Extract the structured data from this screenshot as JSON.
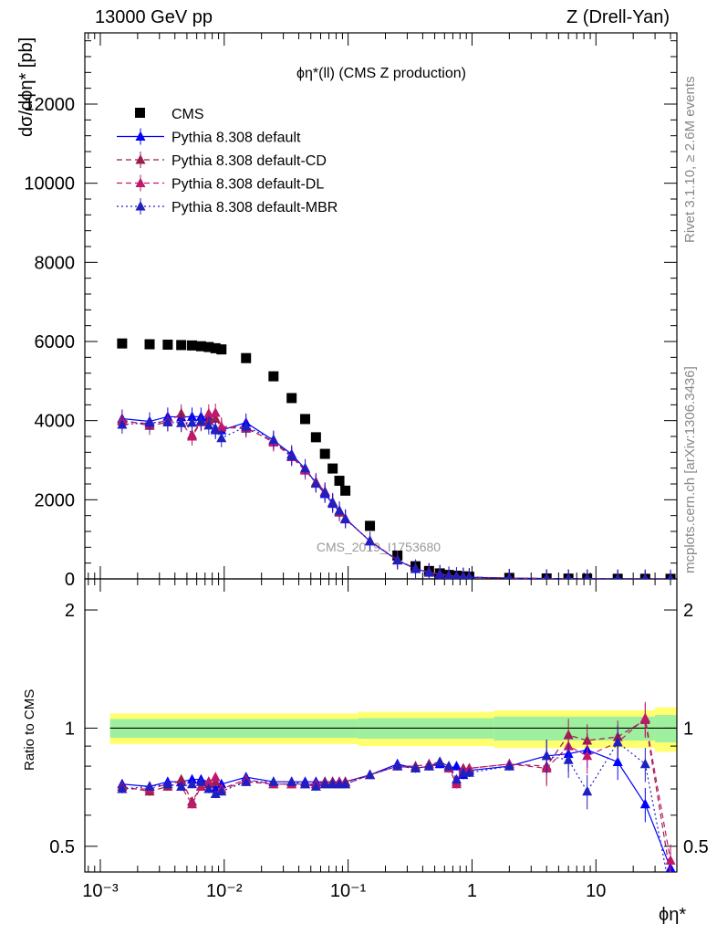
{
  "header": {
    "left": "13000 GeV pp",
    "right": "Z (Drell-Yan)"
  },
  "side_labels": {
    "rivet": "Rivet 3.1.10, ≥ 2.6M events",
    "mcplots": "mcplots.cern.ch [arXiv:1306.3436]"
  },
  "chart_data": [
    {
      "type": "scatter",
      "panel": "main",
      "title": "ϕη*(ll) (CMS Z production)",
      "ylabel": "dσ/dϕη* [pb]",
      "xlabel": "ϕη*",
      "xscale": "log",
      "xlim": [
        0.00075,
        45
      ],
      "ylim": [
        0,
        13800
      ],
      "yticks": [
        0,
        2000,
        4000,
        6000,
        8000,
        10000,
        12000
      ],
      "watermark": "CMS_2019_I1753680",
      "legend": [
        "CMS",
        "Pythia 8.308 default",
        "Pythia 8.308 default-CD",
        "Pythia 8.308 default-DL",
        "Pythia 8.308 default-MBR"
      ],
      "legend_position": "top-left",
      "x": [
        0.0015,
        0.0025,
        0.0035,
        0.0045,
        0.0055,
        0.0065,
        0.0075,
        0.0085,
        0.0095,
        0.015,
        0.025,
        0.035,
        0.045,
        0.055,
        0.065,
        0.075,
        0.085,
        0.095,
        0.15,
        0.25,
        0.35,
        0.45,
        0.55,
        0.65,
        0.75,
        0.85,
        0.95,
        2.0,
        4.0,
        6.0,
        8.5,
        15,
        25,
        40
      ],
      "series": [
        {
          "name": "CMS",
          "color": "#000000",
          "marker": "square",
          "values": [
            5950,
            5930,
            5920,
            5910,
            5900,
            5880,
            5860,
            5830,
            5800,
            5580,
            5120,
            4570,
            4040,
            3580,
            3160,
            2790,
            2480,
            2230,
            1340,
            590,
            320,
            200,
            140,
            100,
            80,
            65,
            55,
            25,
            12,
            8,
            6,
            4,
            3,
            2
          ]
        },
        {
          "name": "Pythia 8.308 default",
          "color": "#0000ff",
          "marker": "triangle",
          "line": "solid",
          "values": [
            4050,
            3980,
            4100,
            4090,
            4100,
            4100,
            4080,
            3800,
            3760,
            3950,
            3500,
            3150,
            2780,
            2420,
            2150,
            1900,
            1700,
            1530,
            950,
            470,
            250,
            160,
            110,
            80,
            65,
            50,
            42,
            20,
            10,
            7,
            5,
            3,
            2,
            1
          ]
        },
        {
          "name": "Pythia 8.308 default-CD",
          "color": "#9a1d4e",
          "marker": "triangle",
          "line": "dashed",
          "values": [
            4020,
            3870,
            3960,
            4180,
            3640,
            3980,
            4000,
            4050,
            3830,
            3800,
            3480,
            3100,
            2760,
            2450,
            2210,
            1930,
            1680,
            1520,
            960,
            480,
            260,
            170,
            120,
            85,
            62,
            55,
            45,
            20,
            10,
            8,
            5,
            3,
            2,
            1
          ]
        },
        {
          "name": "Pythia 8.308 default-DL",
          "color": "#c0186a",
          "marker": "triangle",
          "line": "dashed",
          "values": [
            3980,
            3920,
            4000,
            3950,
            3600,
            3960,
            4180,
            4200,
            3850,
            3830,
            3450,
            3080,
            2740,
            2430,
            2200,
            1940,
            1720,
            1510,
            960,
            480,
            260,
            165,
            118,
            82,
            60,
            52,
            44,
            20,
            10,
            8,
            5,
            3,
            2,
            1
          ]
        },
        {
          "name": "Pythia 8.308 default-MBR",
          "color": "#2020c0",
          "marker": "triangle",
          "line": "dotted",
          "values": [
            3900,
            3950,
            3960,
            3940,
            3950,
            3990,
            3880,
            3760,
            3560,
            3850,
            3520,
            3100,
            2800,
            2410,
            2180,
            1930,
            1730,
            1510,
            960,
            470,
            255,
            165,
            118,
            80,
            58,
            50,
            42,
            20,
            10,
            7,
            5,
            3,
            2,
            1
          ]
        }
      ]
    },
    {
      "type": "line",
      "panel": "ratio",
      "ylabel": "Ratio to CMS",
      "xlabel": "ϕη*",
      "xscale": "log",
      "yscale": "log",
      "ylim": [
        0.43,
        2.4
      ],
      "yticks": [
        0.5,
        1,
        2
      ],
      "xticks": [
        "10⁻³",
        "10⁻²",
        "10⁻¹",
        "1",
        "10"
      ],
      "x": [
        0.0015,
        0.0025,
        0.0035,
        0.0045,
        0.0055,
        0.0065,
        0.0075,
        0.0085,
        0.0095,
        0.015,
        0.025,
        0.035,
        0.045,
        0.055,
        0.065,
        0.075,
        0.085,
        0.095,
        0.15,
        0.25,
        0.35,
        0.45,
        0.55,
        0.65,
        0.75,
        0.85,
        0.95,
        2.0,
        4.0,
        6.0,
        8.5,
        15,
        25,
        40
      ],
      "series": [
        {
          "name": "Pythia 8.308 default",
          "color": "#0000ff",
          "marker": "triangle",
          "line": "solid",
          "values": [
            0.72,
            0.71,
            0.73,
            0.73,
            0.74,
            0.74,
            0.73,
            0.7,
            0.72,
            0.75,
            0.73,
            0.73,
            0.73,
            0.73,
            0.73,
            0.73,
            0.73,
            0.73,
            0.76,
            0.81,
            0.79,
            0.8,
            0.81,
            0.79,
            0.8,
            0.76,
            0.78,
            0.8,
            0.85,
            0.86,
            0.88,
            0.82,
            0.64,
            0.44
          ]
        },
        {
          "name": "Pythia 8.308 default-CD",
          "color": "#9a1d4e",
          "marker": "triangle",
          "line": "dashed",
          "values": [
            0.71,
            0.69,
            0.71,
            0.74,
            0.65,
            0.71,
            0.72,
            0.73,
            0.7,
            0.73,
            0.72,
            0.72,
            0.72,
            0.72,
            0.73,
            0.73,
            0.72,
            0.73,
            0.76,
            0.8,
            0.8,
            0.81,
            0.82,
            0.8,
            0.73,
            0.79,
            0.79,
            0.81,
            0.8,
            0.96,
            0.93,
            0.95,
            1.05,
            0.42
          ]
        },
        {
          "name": "Pythia 8.308 default-DL",
          "color": "#c0186a",
          "marker": "triangle",
          "line": "dashed",
          "values": [
            0.7,
            0.7,
            0.72,
            0.71,
            0.64,
            0.71,
            0.73,
            0.75,
            0.7,
            0.74,
            0.72,
            0.72,
            0.72,
            0.72,
            0.72,
            0.72,
            0.73,
            0.72,
            0.76,
            0.8,
            0.79,
            0.8,
            0.82,
            0.79,
            0.72,
            0.78,
            0.79,
            0.81,
            0.79,
            0.9,
            0.85,
            0.92,
            1.06,
            0.46
          ]
        },
        {
          "name": "Pythia 8.308 default-MBR",
          "color": "#2020c0",
          "marker": "triangle",
          "line": "dotted",
          "values": [
            0.7,
            0.71,
            0.72,
            0.71,
            0.72,
            0.73,
            0.7,
            0.68,
            0.69,
            0.73,
            0.73,
            0.73,
            0.72,
            0.71,
            0.72,
            0.72,
            0.72,
            0.72,
            0.76,
            0.8,
            0.79,
            0.8,
            0.82,
            0.8,
            0.74,
            0.77,
            0.77,
            0.8,
            0.85,
            0.83,
            0.69,
            0.92,
            0.81,
            0.38
          ]
        }
      ]
    }
  ]
}
